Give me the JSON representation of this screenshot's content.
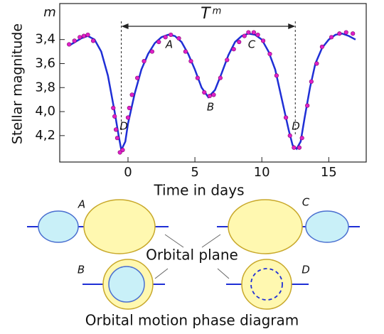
{
  "chart_data": {
    "type": "line",
    "ylabel": "Stellar magnitude",
    "xlabel": "Time in days",
    "y_unit_label": "m",
    "period_label": "T",
    "period_label_sup": "m",
    "annotations": [
      "A",
      "B",
      "C",
      "D",
      "D"
    ],
    "period_marks": [
      -0.5,
      12.5
    ],
    "xlim": [
      -5.1,
      17.8
    ],
    "xticks": [
      0,
      5,
      10,
      15
    ],
    "ylim": [
      3.1,
      4.42
    ],
    "y_inverted": true,
    "yticks": [
      {
        "value": 3.4,
        "label": "3,4"
      },
      {
        "value": 3.6,
        "label": "3,6"
      },
      {
        "value": 3.8,
        "label": "3,8"
      },
      {
        "value": 4.0,
        "label": "4,0"
      },
      {
        "value": 4.2,
        "label": "4,2"
      }
    ],
    "series": [
      {
        "type": "line",
        "color": "#1f2fd6",
        "x": [
          -4.4,
          -3.5,
          -3,
          -2.5,
          -2,
          -1.5,
          -1,
          -0.7,
          -0.5,
          -0.2,
          0,
          0.5,
          1,
          1.5,
          2,
          2.5,
          3,
          3.5,
          4,
          4.5,
          5,
          5.5,
          6,
          6.5,
          7,
          7.5,
          8,
          8.5,
          9,
          9.5,
          10,
          10.5,
          11,
          11.5,
          12,
          12.3,
          12.6,
          12.9,
          13.2,
          13.6,
          14,
          14.5,
          15,
          15.5,
          16,
          16.5,
          17
        ],
        "values": [
          3.45,
          3.39,
          3.37,
          3.4,
          3.5,
          3.7,
          4.0,
          4.2,
          4.32,
          4.25,
          4.1,
          3.85,
          3.65,
          3.52,
          3.43,
          3.38,
          3.36,
          3.37,
          3.42,
          3.52,
          3.65,
          3.8,
          3.88,
          3.82,
          3.68,
          3.53,
          3.42,
          3.37,
          3.35,
          3.36,
          3.4,
          3.5,
          3.65,
          3.9,
          4.15,
          4.28,
          4.31,
          4.25,
          4.05,
          3.8,
          3.6,
          3.47,
          3.4,
          3.36,
          3.35,
          3.37,
          3.4
        ]
      },
      {
        "type": "scatter",
        "color": "#e01fc8",
        "x": [
          -4.4,
          -4,
          -3.6,
          -3.3,
          -3,
          -2.6,
          -1.1,
          -1,
          -0.9,
          -0.8,
          -0.4,
          -0.6,
          0,
          0.1,
          0.3,
          0.7,
          1.2,
          1.8,
          2.3,
          2.8,
          3.2,
          3.8,
          4.3,
          4.7,
          5.2,
          5.7,
          6.1,
          6.4,
          6.9,
          7.4,
          7.9,
          8.3,
          8.7,
          9,
          9.4,
          9.7,
          10.1,
          10.6,
          11.1,
          11.8,
          12.1,
          12.4,
          12.8,
          13,
          13.4,
          13.7,
          14.1,
          14.5,
          15.2,
          15.8,
          16.3,
          16.8
        ],
        "values": [
          3.44,
          3.41,
          3.38,
          3.37,
          3.36,
          3.41,
          3.97,
          4.04,
          4.15,
          4.22,
          4.32,
          4.34,
          4.05,
          3.97,
          3.86,
          3.72,
          3.58,
          3.5,
          3.42,
          3.38,
          3.36,
          3.39,
          3.5,
          3.58,
          3.72,
          3.84,
          3.87,
          3.86,
          3.72,
          3.57,
          3.48,
          3.42,
          3.37,
          3.34,
          3.34,
          3.36,
          3.41,
          3.52,
          3.7,
          4.05,
          4.2,
          4.3,
          4.3,
          4.22,
          3.95,
          3.75,
          3.6,
          3.46,
          3.38,
          3.35,
          3.34,
          3.35
        ]
      }
    ]
  },
  "diagram": {
    "labels": [
      "A",
      "B",
      "C",
      "D"
    ],
    "plane_label": "Orbital plane",
    "caption": "Orbital motion phase diagram"
  }
}
